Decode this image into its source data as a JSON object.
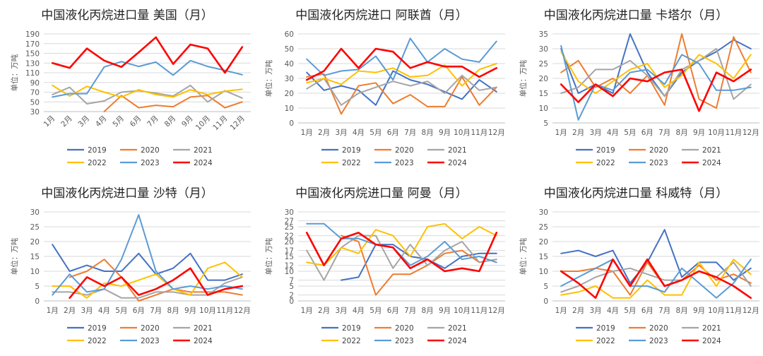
{
  "colors": {
    "2019": "#4472C4",
    "2020": "#ED7D31",
    "2021": "#A5A5A5",
    "2022": "#FFC000",
    "2023": "#5B9BD5",
    "2024": "#FF0000"
  },
  "months": [
    "1月",
    "2月",
    "3月",
    "4月",
    "5月",
    "6月",
    "7月",
    "8月",
    "9月",
    "10月",
    "11月",
    "12月"
  ],
  "chart_data": [
    {
      "type": "line",
      "title": "中国液化丙烷进口量 美国（月）",
      "ylabel": "单位：万吨",
      "ylim": [
        30,
        190
      ],
      "yticks": [
        30,
        50,
        70,
        90,
        110,
        130,
        150,
        170,
        190
      ],
      "x_rotated": true,
      "series": [
        {
          "name": "2019",
          "values": [
            null,
            null,
            null,
            null,
            null,
            null,
            null,
            null,
            null,
            null,
            null,
            null
          ]
        },
        {
          "name": "2020",
          "values": [
            null,
            null,
            null,
            30,
            63,
            38,
            43,
            40,
            60,
            63,
            38,
            50
          ]
        },
        {
          "name": "2021",
          "values": [
            65,
            80,
            46,
            52,
            70,
            73,
            68,
            62,
            84,
            50,
            73,
            58
          ]
        },
        {
          "name": "2022",
          "values": [
            84,
            62,
            82,
            70,
            60,
            75,
            65,
            60,
            75,
            65,
            72,
            76
          ]
        },
        {
          "name": "2023",
          "values": [
            60,
            67,
            67,
            122,
            133,
            123,
            132,
            105,
            135,
            123,
            115,
            106
          ]
        },
        {
          "name": "2024",
          "values": [
            130,
            120,
            160,
            135,
            122,
            152,
            183,
            128,
            168,
            160,
            110,
            163
          ]
        }
      ]
    },
    {
      "type": "line",
      "title": "中国液化丙烷进口 阿联酋（月）",
      "ylabel": "单位：万吨",
      "ylim": [
        0,
        60
      ],
      "yticks": [
        0,
        10,
        20,
        30,
        40,
        50,
        60
      ],
      "x_rotated": false,
      "series": [
        {
          "name": "2019",
          "values": [
            34,
            22,
            25,
            22,
            12,
            35,
            29,
            26,
            21,
            16,
            29,
            21
          ]
        },
        {
          "name": "2020",
          "values": [
            31,
            33,
            6,
            25,
            27,
            13,
            19,
            11,
            11,
            31,
            12,
            24
          ]
        },
        {
          "name": "2021",
          "values": [
            23,
            30,
            12,
            20,
            24,
            28,
            25,
            28,
            20,
            32,
            22,
            24
          ]
        },
        {
          "name": "2022",
          "values": [
            27,
            30,
            26,
            35,
            34,
            37,
            31,
            32,
            39,
            25,
            36,
            40
          ]
        },
        {
          "name": "2023",
          "values": [
            43,
            32,
            35,
            36,
            45,
            29,
            57,
            41,
            50,
            43,
            41,
            55
          ]
        },
        {
          "name": "2024",
          "values": [
            29,
            35,
            50,
            37,
            50,
            48,
            37,
            41,
            38,
            38,
            31,
            37
          ]
        }
      ]
    },
    {
      "type": "line",
      "title": "中国液化丙烷进口量 卡塔尔（月）",
      "ylabel": "单位：万吨",
      "ylim": [
        5,
        35
      ],
      "yticks": [
        5,
        10,
        15,
        20,
        25,
        30,
        35
      ],
      "x_rotated": false,
      "series": [
        {
          "name": "2019",
          "values": [
            30,
            15,
            18,
            15,
            35,
            22,
            14,
            22,
            26,
            29,
            33,
            30
          ]
        },
        {
          "name": "2020",
          "values": [
            22,
            26,
            17,
            20,
            15,
            21,
            11,
            35,
            13,
            10,
            34,
            22
          ]
        },
        {
          "name": "2021",
          "values": [
            15,
            17,
            23,
            23,
            26,
            21,
            14,
            23,
            26,
            30,
            13,
            18
          ]
        },
        {
          "name": "2022",
          "values": [
            29,
            19,
            15,
            19,
            23,
            25,
            17,
            21,
            28,
            25,
            20,
            28
          ]
        },
        {
          "name": "2023",
          "values": [
            31,
            6,
            18,
            16,
            22,
            23,
            18,
            28,
            25,
            16,
            16,
            17
          ]
        },
        {
          "name": "2024",
          "values": [
            18,
            12,
            18,
            14,
            20,
            19,
            22,
            23,
            9,
            22,
            19,
            23
          ]
        }
      ]
    },
    {
      "type": "line",
      "title": "中国液化丙烷进口量 沙特（月）",
      "ylabel": "单位：万吨",
      "ylim": [
        0,
        30
      ],
      "yticks": [
        0,
        5,
        10,
        15,
        20,
        25,
        30
      ],
      "x_rotated": false,
      "series": [
        {
          "name": "2019",
          "values": [
            19,
            10,
            12,
            10,
            10,
            16,
            9,
            11,
            16,
            7,
            7,
            9
          ]
        },
        {
          "name": "2020",
          "values": [
            null,
            8,
            10,
            14,
            8,
            0,
            2,
            4,
            3,
            3,
            3,
            2
          ]
        },
        {
          "name": "2021",
          "values": [
            3,
            3,
            2,
            4,
            1,
            1,
            3,
            3,
            2,
            2,
            6,
            8
          ]
        },
        {
          "name": "2022",
          "values": [
            5,
            5,
            1,
            6,
            5,
            7,
            9,
            4,
            2,
            11,
            13,
            8
          ]
        },
        {
          "name": "2023",
          "values": [
            2,
            9,
            3,
            4,
            14,
            29,
            10,
            4,
            5,
            4,
            5,
            4
          ]
        },
        {
          "name": "2024",
          "values": [
            null,
            1,
            8,
            5,
            8,
            2,
            4,
            7,
            11,
            2,
            4,
            5
          ]
        }
      ]
    },
    {
      "type": "line",
      "title": "中国液化丙烷进口量 阿曼（月）",
      "ylabel": "单位：万吨",
      "ylim": [
        0,
        30
      ],
      "yticks": [
        0,
        2,
        5,
        7,
        10,
        12,
        15,
        17,
        20,
        22,
        25,
        27,
        30
      ],
      "x_rotated": false,
      "series": [
        {
          "name": "2019",
          "values": [
            null,
            null,
            7,
            8,
            19,
            19,
            15,
            14,
            11,
            15,
            16,
            16
          ]
        },
        {
          "name": "2020",
          "values": [
            null,
            null,
            22,
            20,
            2,
            9,
            9,
            12,
            16,
            17,
            13,
            14
          ]
        },
        {
          "name": "2021",
          "values": [
            17,
            7,
            18,
            22,
            22,
            11,
            19,
            12,
            17,
            20,
            13,
            14
          ]
        },
        {
          "name": "2022",
          "values": [
            13,
            12,
            18,
            16,
            24,
            22,
            15,
            25,
            26,
            21,
            25,
            22
          ]
        },
        {
          "name": "2023",
          "values": [
            26,
            26,
            21,
            21,
            19,
            18,
            12,
            15,
            20,
            14,
            15,
            13
          ]
        },
        {
          "name": "2024",
          "values": [
            23,
            12,
            21,
            23,
            19,
            18,
            11,
            14,
            10,
            11,
            10,
            23
          ]
        }
      ]
    },
    {
      "type": "line",
      "title": "中国液化丙烷进口量 科威特（月）",
      "ylabel": "单位：万吨",
      "ylim": [
        0,
        30
      ],
      "yticks": [
        0,
        5,
        10,
        15,
        20,
        25,
        30
      ],
      "x_rotated": false,
      "series": [
        {
          "name": "2019",
          "values": [
            16,
            17,
            15,
            17,
            6,
            13,
            24,
            8,
            13,
            13,
            7,
            11
          ]
        },
        {
          "name": "2020",
          "values": [
            10,
            10,
            11,
            10,
            2,
            13,
            5,
            7,
            12,
            7,
            9,
            6
          ]
        },
        {
          "name": "2021",
          "values": [
            3,
            5,
            8,
            10,
            11,
            9,
            7,
            7,
            10,
            8,
            13,
            5
          ]
        },
        {
          "name": "2022",
          "values": [
            2,
            3,
            5,
            1,
            1,
            7,
            2,
            2,
            13,
            5,
            14,
            9
          ]
        },
        {
          "name": "2023",
          "values": [
            5,
            8,
            11,
            14,
            5,
            5,
            3,
            11,
            6,
            1,
            6,
            14
          ]
        },
        {
          "name": "2024",
          "values": [
            10,
            6,
            1,
            14,
            5,
            14,
            5,
            7,
            10,
            8,
            5,
            1
          ]
        }
      ]
    }
  ]
}
